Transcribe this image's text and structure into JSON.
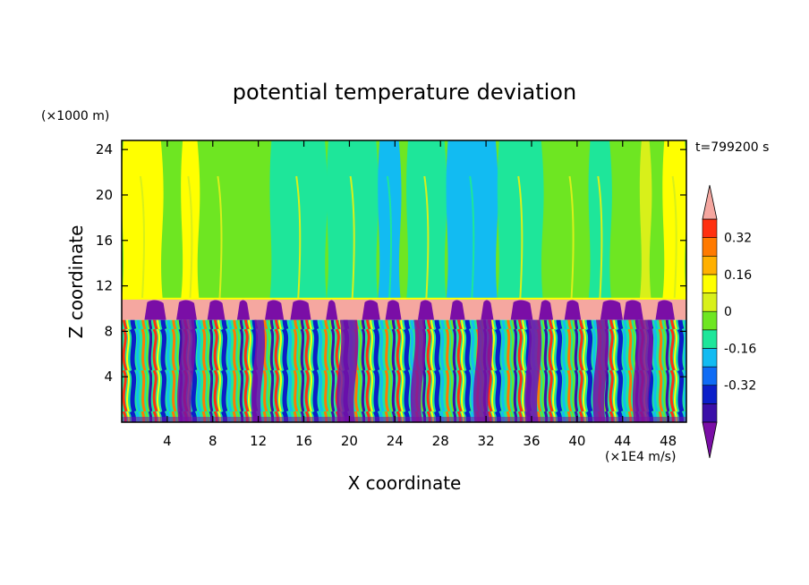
{
  "chart_data": {
    "type": "heatmap",
    "title": "potential temperature deviation",
    "xlabel": "X coordinate",
    "ylabel": "Z coordinate",
    "x_unit": "(×1E4 m/s)",
    "y_unit": "(×1000 m)",
    "time_label": "t=799200 s",
    "xlim": [
      0,
      49.6
    ],
    "ylim": [
      0,
      24.8
    ],
    "x_ticks": [
      4,
      8,
      12,
      16,
      20,
      24,
      28,
      32,
      36,
      40,
      44,
      48
    ],
    "y_ticks": [
      4,
      8,
      12,
      16,
      20,
      24
    ],
    "colorbar": {
      "levels": [
        -0.48,
        -0.4,
        -0.32,
        -0.24,
        -0.16,
        -0.08,
        0,
        0.08,
        0.16,
        0.24,
        0.32,
        0.4
      ],
      "colors": [
        "#7a0ea6",
        "#3a0fa8",
        "#0b1fc9",
        "#0f6cf5",
        "#12bbf2",
        "#1ee69a",
        "#6ee622",
        "#d8f01a",
        "#ffff00",
        "#ffb000",
        "#ff7a00",
        "#ff3010",
        "#f5a7a0"
      ],
      "tick_labels": [
        "0.32",
        "0.16",
        "0",
        "-0.16",
        "-0.32"
      ],
      "tick_values": [
        0.32,
        0.16,
        0,
        -0.16,
        -0.32
      ]
    },
    "regions": [
      {
        "name": "upper layer",
        "z_range": [
          10.8,
          24.8
        ],
        "values": "approximately -0.16 to 0.16"
      },
      {
        "name": "inversion band",
        "z_range": [
          9.0,
          10.8
        ],
        "values": "above 0.4 with patches below -0.48"
      },
      {
        "name": "lower turbulent layer",
        "z_range": [
          0,
          9.0
        ],
        "values": "mixed, approximately -0.48 to 0.4"
      }
    ]
  }
}
